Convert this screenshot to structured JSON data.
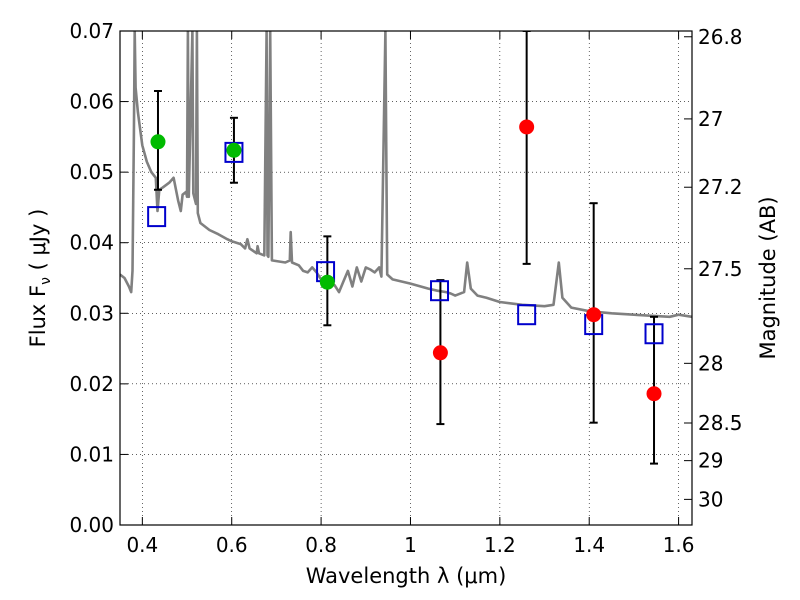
{
  "chart_data": {
    "type": "scatter",
    "xlabel": "Wavelength  λ (μm)",
    "ylabel": "Flux  F_ν  ( μJy )",
    "y2label": "Magnitude (AB)",
    "xlim": [
      0.35,
      1.63
    ],
    "ylim": [
      0.0,
      0.07
    ],
    "grid": true,
    "x_ticks": [
      0.4,
      0.6,
      0.8,
      1.0,
      1.2,
      1.4,
      1.6
    ],
    "x_tick_labels": [
      "0.4",
      "0.6",
      "0.8",
      "1",
      "1.2",
      "1.4",
      "1.6"
    ],
    "y_ticks": [
      0.0,
      0.01,
      0.02,
      0.03,
      0.04,
      0.05,
      0.06,
      0.07
    ],
    "y_tick_labels": [
      "0.00",
      "0.01",
      "0.02",
      "0.03",
      "0.04",
      "0.05",
      "0.06",
      "0.07"
    ],
    "y2_ticks": [
      26.8,
      27,
      27.2,
      27.5,
      28,
      28.5,
      29,
      30
    ],
    "y2_tick_labels": [
      "26.8",
      "27",
      "27.2",
      "27.5",
      "28",
      "28.5",
      "29",
      "30"
    ],
    "colors": {
      "spectrum": "#808080",
      "green_points": "#00bb00",
      "red_points": "#ff0000",
      "model_squares": "#0000cc",
      "error_bars": "#000000"
    },
    "series": [
      {
        "marker": "spectrum-line",
        "points": [
          [
            0.35,
            0.0355
          ],
          [
            0.36,
            0.035
          ],
          [
            0.37,
            0.0338
          ],
          [
            0.375,
            0.033
          ],
          [
            0.378,
            0.036
          ],
          [
            0.381,
            0.0555
          ],
          [
            0.383,
            0.07
          ],
          [
            0.385,
            0.062
          ],
          [
            0.39,
            0.0585
          ],
          [
            0.4,
            0.0538
          ],
          [
            0.41,
            0.0515
          ],
          [
            0.42,
            0.05
          ],
          [
            0.43,
            0.0492
          ],
          [
            0.434,
            0.0445
          ],
          [
            0.438,
            0.0475
          ],
          [
            0.445,
            0.0478
          ],
          [
            0.46,
            0.0485
          ],
          [
            0.47,
            0.0492
          ],
          [
            0.48,
            0.046
          ],
          [
            0.486,
            0.0445
          ],
          [
            0.49,
            0.0468
          ],
          [
            0.498,
            0.0472
          ],
          [
            0.5,
            0.0465
          ],
          [
            0.502,
            0.07
          ],
          [
            0.504,
            0.0465
          ],
          [
            0.512,
            0.07
          ],
          [
            0.514,
            0.047
          ],
          [
            0.52,
            0.0455
          ],
          [
            0.522,
            0.07
          ],
          [
            0.524,
            0.0442
          ],
          [
            0.53,
            0.0428
          ],
          [
            0.55,
            0.0418
          ],
          [
            0.57,
            0.0412
          ],
          [
            0.59,
            0.0405
          ],
          [
            0.6,
            0.0402
          ],
          [
            0.62,
            0.0398
          ],
          [
            0.63,
            0.0392
          ],
          [
            0.635,
            0.0405
          ],
          [
            0.64,
            0.0392
          ],
          [
            0.656,
            0.0385
          ],
          [
            0.658,
            0.0395
          ],
          [
            0.661,
            0.0385
          ],
          [
            0.673,
            0.0382
          ],
          [
            0.678,
            0.07
          ],
          [
            0.68,
            0.0382
          ],
          [
            0.682,
            0.038
          ],
          [
            0.686,
            0.07
          ],
          [
            0.69,
            0.0375
          ],
          [
            0.72,
            0.0372
          ],
          [
            0.73,
            0.0375
          ],
          [
            0.732,
            0.0415
          ],
          [
            0.735,
            0.0372
          ],
          [
            0.75,
            0.0368
          ],
          [
            0.76,
            0.036
          ],
          [
            0.77,
            0.0358
          ],
          [
            0.78,
            0.0365
          ],
          [
            0.79,
            0.0358
          ],
          [
            0.8,
            0.0348
          ],
          [
            0.81,
            0.0352
          ],
          [
            0.82,
            0.0342
          ],
          [
            0.83,
            0.034
          ],
          [
            0.84,
            0.033
          ],
          [
            0.85,
            0.0345
          ],
          [
            0.86,
            0.036
          ],
          [
            0.87,
            0.0338
          ],
          [
            0.88,
            0.0365
          ],
          [
            0.89,
            0.0345
          ],
          [
            0.9,
            0.0365
          ],
          [
            0.91,
            0.0362
          ],
          [
            0.92,
            0.0358
          ],
          [
            0.93,
            0.0365
          ],
          [
            0.935,
            0.0352
          ],
          [
            0.944,
            0.07
          ],
          [
            0.948,
            0.0355
          ],
          [
            0.96,
            0.0348
          ],
          [
            1.0,
            0.0342
          ],
          [
            1.04,
            0.0335
          ],
          [
            1.06,
            0.0332
          ],
          [
            1.08,
            0.033
          ],
          [
            1.09,
            0.0328
          ],
          [
            1.1,
            0.0325
          ],
          [
            1.12,
            0.033
          ],
          [
            1.127,
            0.0372
          ],
          [
            1.135,
            0.0335
          ],
          [
            1.15,
            0.0325
          ],
          [
            1.17,
            0.0322
          ],
          [
            1.2,
            0.0316
          ],
          [
            1.25,
            0.0312
          ],
          [
            1.3,
            0.031
          ],
          [
            1.32,
            0.0312
          ],
          [
            1.332,
            0.0372
          ],
          [
            1.34,
            0.0322
          ],
          [
            1.36,
            0.0308
          ],
          [
            1.4,
            0.0303
          ],
          [
            1.45,
            0.03
          ],
          [
            1.5,
            0.0298
          ],
          [
            1.55,
            0.0296
          ],
          [
            1.58,
            0.0295
          ],
          [
            1.6,
            0.0298
          ],
          [
            1.63,
            0.0295
          ]
        ]
      },
      {
        "marker": "green-circle",
        "points": [
          [
            0.435,
            0.0543
          ],
          [
            0.605,
            0.0531
          ],
          [
            0.814,
            0.0344
          ]
        ],
        "errors": [
          [
            0.0475,
            0.0615
          ],
          [
            0.0485,
            0.0577
          ],
          [
            0.0283,
            0.0409
          ]
        ]
      },
      {
        "marker": "red-circle",
        "points": [
          [
            1.067,
            0.0244
          ],
          [
            1.26,
            0.0564
          ],
          [
            1.41,
            0.0298
          ],
          [
            1.545,
            0.0186
          ]
        ],
        "errors": [
          [
            0.0143,
            0.0347
          ],
          [
            0.037,
            0.07
          ],
          [
            0.0145,
            0.0456
          ],
          [
            0.0087,
            0.0295
          ]
        ]
      },
      {
        "marker": "open-square",
        "points": [
          [
            0.432,
            0.0437
          ],
          [
            0.605,
            0.0528
          ],
          [
            0.81,
            0.0359
          ],
          [
            1.065,
            0.0332
          ],
          [
            1.26,
            0.0298
          ],
          [
            1.41,
            0.0284
          ],
          [
            1.545,
            0.0271
          ]
        ]
      }
    ]
  }
}
